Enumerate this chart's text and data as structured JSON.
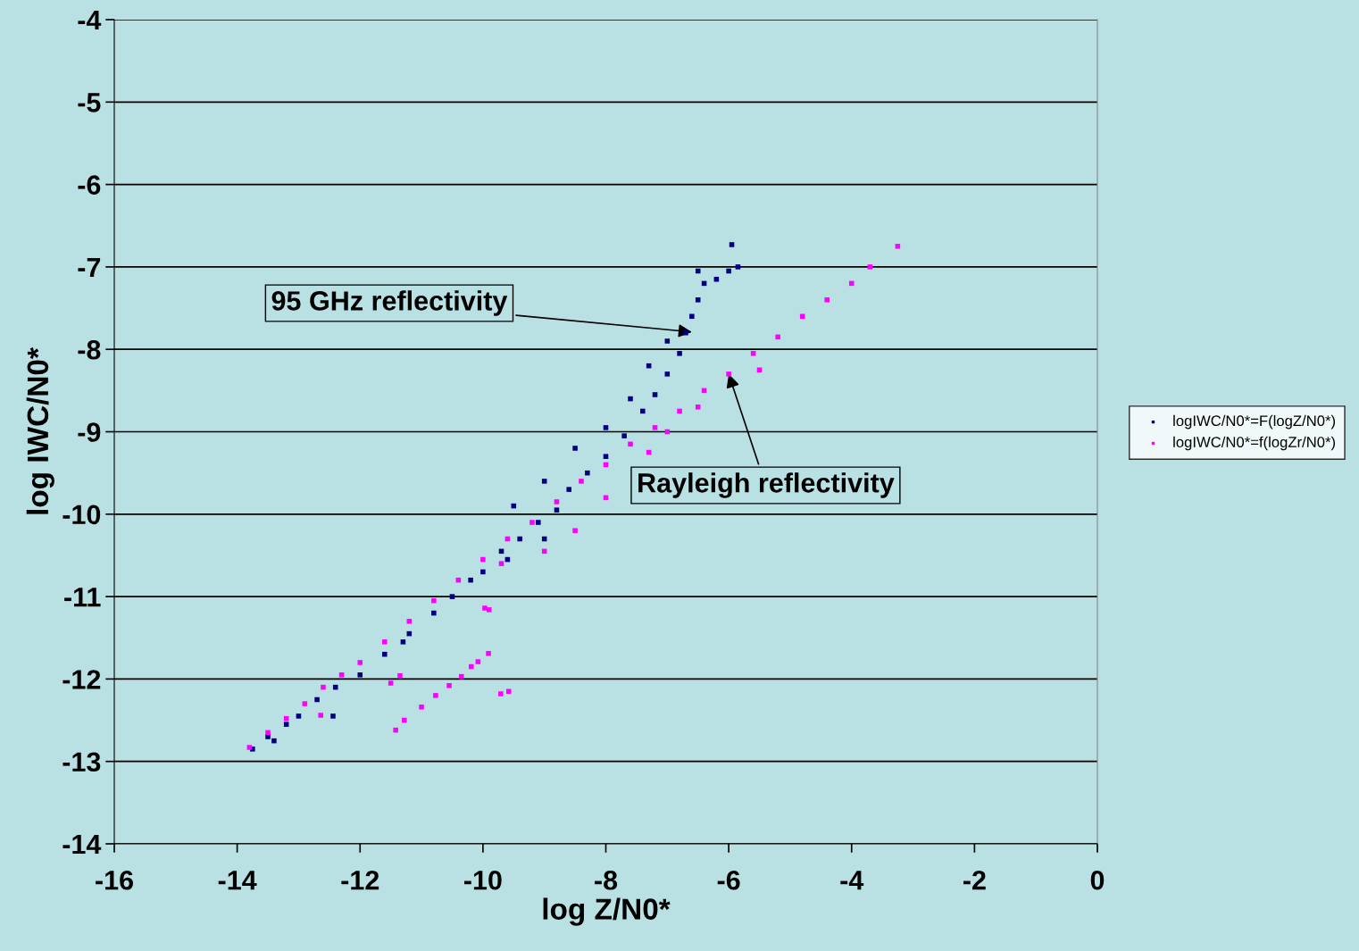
{
  "chart_data": {
    "type": "scatter",
    "xlabel": "log Z/N0*",
    "ylabel": "log IWC/N0*",
    "xlim": [
      -16,
      0
    ],
    "xticks": [
      -16,
      -14,
      -12,
      -10,
      -8,
      -6,
      -4,
      -2,
      0
    ],
    "ylim": [
      -14,
      -4
    ],
    "yticks": [
      -14,
      -13,
      -12,
      -11,
      -10,
      -9,
      -8,
      -7,
      -6,
      -5,
      -4
    ],
    "grid": "y",
    "legend": "right",
    "marker": "square",
    "series": [
      {
        "name": "logIWC/N0*=F(logZ/N0*)",
        "color": "#000080",
        "x": [
          -13.75,
          -13.5,
          -13.2,
          -13.0,
          -12.7,
          -12.4,
          -12.0,
          -11.6,
          -11.2,
          -10.8,
          -10.5,
          -10.2,
          -10.0,
          -9.7,
          -9.4,
          -9.1,
          -8.8,
          -8.6,
          -8.3,
          -8.0,
          -7.7,
          -7.4,
          -7.2,
          -7.0,
          -6.8,
          -6.7,
          -6.6,
          -6.5,
          -6.4,
          -6.2,
          -6.0,
          -5.85,
          -5.95,
          -9.5,
          -9.0,
          -8.5,
          -8.0,
          -7.6,
          -7.3,
          -7.0,
          -6.5,
          -9.6,
          -9.0,
          -11.3,
          -13.4,
          -12.44
        ],
        "values": [
          -12.85,
          -12.7,
          -12.55,
          -12.45,
          -12.25,
          -12.1,
          -11.95,
          -11.7,
          -11.45,
          -11.2,
          -11.0,
          -10.8,
          -10.7,
          -10.45,
          -10.3,
          -10.1,
          -9.95,
          -9.7,
          -9.5,
          -9.3,
          -9.05,
          -8.75,
          -8.55,
          -8.3,
          -8.05,
          -7.8,
          -7.6,
          -7.4,
          -7.2,
          -7.15,
          -7.05,
          -7.0,
          -6.73,
          -9.9,
          -9.6,
          -9.2,
          -8.95,
          -8.6,
          -8.2,
          -7.9,
          -7.05,
          -10.55,
          -10.3,
          -11.55,
          -12.75,
          -12.45
        ]
      },
      {
        "name": "logIWC/N0*=f(logZr/N0*)",
        "color": "#ff00ff",
        "x": [
          -13.8,
          -13.5,
          -13.2,
          -12.9,
          -12.6,
          -12.3,
          -12.0,
          -11.6,
          -11.2,
          -10.8,
          -10.4,
          -10.0,
          -9.6,
          -9.2,
          -8.8,
          -8.4,
          -8.0,
          -7.6,
          -7.2,
          -6.8,
          -6.4,
          -6.0,
          -5.6,
          -5.2,
          -4.8,
          -4.4,
          -4.0,
          -3.7,
          -3.25,
          -9.0,
          -8.5,
          -8.0,
          -7.3,
          -7.0,
          -6.5,
          -5.5,
          -9.7,
          -12.64,
          -11.42,
          -11.28,
          -11.0,
          -10.77,
          -10.55,
          -10.35,
          -10.19,
          -10.08,
          -9.91,
          -9.71,
          -9.58,
          -9.97,
          -9.9,
          -11.5,
          -11.35
        ],
        "values": [
          -12.83,
          -12.65,
          -12.48,
          -12.3,
          -12.1,
          -11.95,
          -11.8,
          -11.55,
          -11.3,
          -11.05,
          -10.8,
          -10.55,
          -10.3,
          -10.1,
          -9.85,
          -9.6,
          -9.4,
          -9.15,
          -8.95,
          -8.75,
          -8.5,
          -8.3,
          -8.05,
          -7.85,
          -7.6,
          -7.4,
          -7.2,
          -7.0,
          -6.75,
          -10.45,
          -10.2,
          -9.8,
          -9.25,
          -9.0,
          -8.7,
          -8.25,
          -10.6,
          -12.44,
          -12.62,
          -12.5,
          -12.34,
          -12.2,
          -12.08,
          -11.97,
          -11.85,
          -11.79,
          -11.69,
          -12.18,
          -12.15,
          -11.14,
          -11.16,
          -12.05,
          -11.96
        ]
      }
    ],
    "annotations": [
      {
        "text": "95 GHz reflectivity",
        "x": -6.6,
        "y": -7.79
      },
      {
        "text": "Rayleigh reflectivity",
        "x": -6.0,
        "y": -8.3
      }
    ]
  }
}
